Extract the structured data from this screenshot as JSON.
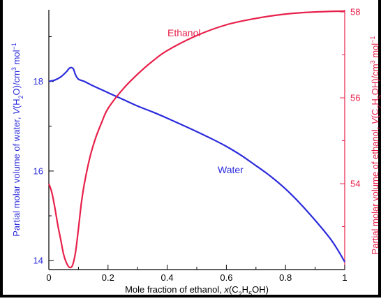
{
  "chart_data": {
    "type": "line",
    "xlabel_parts": [
      "Mole fraction of ethanol, ",
      "x",
      "(C",
      "2",
      "H",
      "5",
      "OH)"
    ],
    "ylabel_left_parts": [
      "Partial molar volume of water, ",
      "V",
      "(H",
      "2",
      "O)/cm",
      "3",
      " mol",
      "−1"
    ],
    "ylabel_right_parts": [
      "Partial molar volume of ethanol, ",
      "V",
      "(C",
      "2",
      "H",
      "5",
      "OH)/cm",
      "3",
      " mol",
      "−1"
    ],
    "x_ticks": [
      "0",
      "0.2",
      "0.4",
      "0.6",
      "0.8",
      "1"
    ],
    "y_left_ticks": [
      "14",
      "16",
      "18"
    ],
    "y_right_ticks": [
      "54",
      "56",
      "58"
    ],
    "xlim": [
      0,
      1
    ],
    "ylim_left": [
      13.8,
      19.6
    ],
    "ylim_right": [
      52.0,
      58.05
    ],
    "series": [
      {
        "name": "Water",
        "axis": "left",
        "color": "#2b2bdc",
        "x": [
          0,
          0.02,
          0.04,
          0.06,
          0.07,
          0.08,
          0.085,
          0.09,
          0.1,
          0.12,
          0.15,
          0.2,
          0.25,
          0.3,
          0.35,
          0.4,
          0.45,
          0.5,
          0.55,
          0.6,
          0.65,
          0.7,
          0.75,
          0.8,
          0.85,
          0.9,
          0.95,
          0.98,
          1.0
        ],
        "y": [
          18.0,
          18.03,
          18.1,
          18.22,
          18.3,
          18.3,
          18.25,
          18.15,
          18.05,
          18.0,
          17.9,
          17.75,
          17.6,
          17.45,
          17.32,
          17.18,
          17.03,
          16.88,
          16.72,
          16.55,
          16.35,
          16.12,
          15.88,
          15.6,
          15.27,
          14.9,
          14.5,
          14.2,
          13.97
        ]
      },
      {
        "name": "Ethanol",
        "axis": "right",
        "color": "#e8204a",
        "x": [
          0,
          0.01,
          0.02,
          0.03,
          0.04,
          0.05,
          0.06,
          0.07,
          0.08,
          0.09,
          0.1,
          0.11,
          0.12,
          0.14,
          0.16,
          0.18,
          0.2,
          0.25,
          0.3,
          0.35,
          0.4,
          0.5,
          0.6,
          0.7,
          0.8,
          0.9,
          1.0
        ],
        "y": [
          54.0,
          53.8,
          53.45,
          53.05,
          52.7,
          52.35,
          52.15,
          52.05,
          52.1,
          52.4,
          52.95,
          53.55,
          54.0,
          54.65,
          55.1,
          55.45,
          55.75,
          56.2,
          56.55,
          56.85,
          57.1,
          57.45,
          57.7,
          57.85,
          57.95,
          58.0,
          58.02
        ]
      }
    ]
  }
}
